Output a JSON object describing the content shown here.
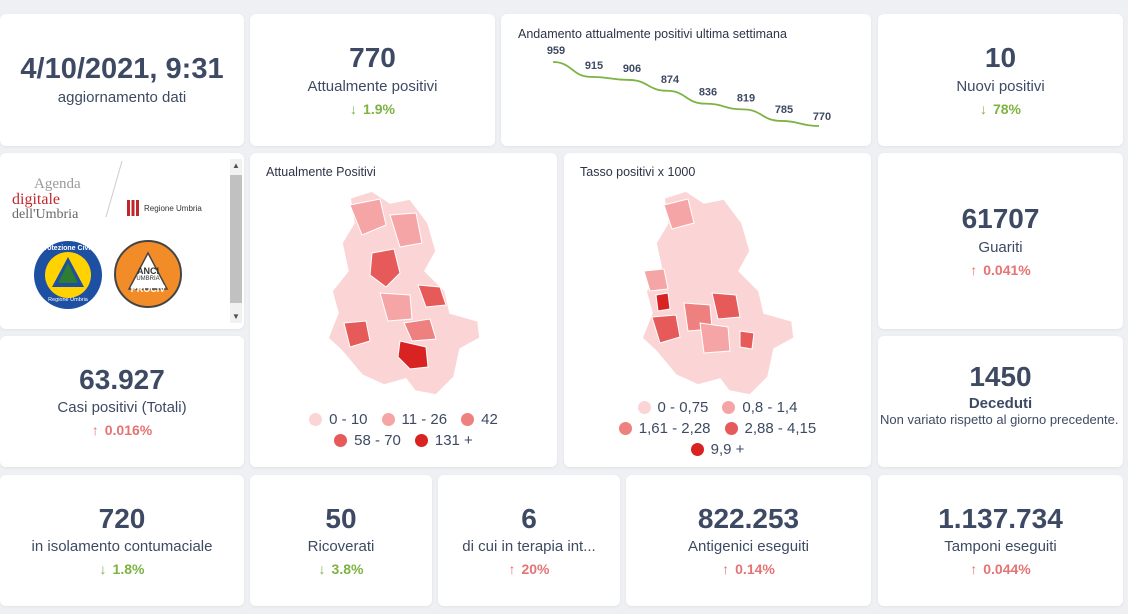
{
  "update": {
    "datetime": "4/10/2021, 9:31",
    "label": "aggiornamento dati"
  },
  "positivi": {
    "value": "770",
    "label": "Attualmente positivi",
    "trend": "1.9%",
    "direction": "down"
  },
  "weekly_chart": {
    "title": "Andamento attualmente positivi ultima settimana",
    "chart_data": {
      "type": "line",
      "title": "Andamento attualmente positivi ultima settimana",
      "values": [
        959,
        915,
        906,
        874,
        836,
        819,
        785,
        770
      ],
      "series": [
        {
          "values": [
            959,
            915,
            906,
            874,
            836,
            819,
            785,
            770
          ],
          "color": "#7cb342"
        }
      ]
    }
  },
  "nuovi": {
    "value": "10",
    "label": "Nuovi positivi",
    "trend": "78%",
    "direction": "down"
  },
  "logos": {
    "agenda_line1": "Agenda",
    "agenda_line2": "digitale",
    "agenda_line3": "dell'Umbria",
    "regione": "Regione Umbria",
    "protezione": "Protezione Civile",
    "protezione_sub": "Regione Umbria",
    "anci1": "ANCI",
    "anci2": "UMBRIA",
    "anci3": "PROCIV"
  },
  "map1": {
    "title": "Attualmente Positivi",
    "legend": [
      {
        "label": "0 - 10",
        "color": "#fbd5d5"
      },
      {
        "label": "11 - 26",
        "color": "#f5a5a5"
      },
      {
        "label": "42",
        "color": "#ee8080"
      },
      {
        "label": "58 - 70",
        "color": "#e65a5a"
      },
      {
        "label": "131 +",
        "color": "#d92323"
      }
    ]
  },
  "map2": {
    "title": "Tasso positivi x 1000",
    "legend": [
      {
        "label": "0 - 0,75",
        "color": "#fbd5d5"
      },
      {
        "label": "0,8 - 1,4",
        "color": "#f5a5a5"
      },
      {
        "label": "1,61 - 2,28",
        "color": "#ee8080"
      },
      {
        "label": "2,88 - 4,15",
        "color": "#e65a5a"
      },
      {
        "label": "9,9 +",
        "color": "#d92323"
      }
    ]
  },
  "guariti": {
    "value": "61707",
    "label": "Guariti",
    "trend": "0.041%",
    "direction": "up"
  },
  "casi": {
    "value": "63.927",
    "label": "Casi positivi (Totali)",
    "trend": "0.016%",
    "direction": "up"
  },
  "deceduti": {
    "value": "1450",
    "label": "Deceduti",
    "note": "Non variato rispetto al giorno precedente."
  },
  "isolamento": {
    "value": "720",
    "label": "in isolamento contumaciale",
    "trend": "1.8%",
    "direction": "down"
  },
  "ricoverati": {
    "value": "50",
    "label": "Ricoverati",
    "trend": "3.8%",
    "direction": "down"
  },
  "terapia": {
    "value": "6",
    "label": "di cui in terapia int...",
    "trend": "20%",
    "direction": "up"
  },
  "antigenici": {
    "value": "822.253",
    "label": "Antigenici eseguiti",
    "trend": "0.14%",
    "direction": "up"
  },
  "tamponi": {
    "value": "1.137.734",
    "label": "Tamponi eseguiti",
    "trend": "0.044%",
    "direction": "up"
  },
  "colors": {
    "green": "#7cb342",
    "red": "#e57373",
    "text": "#3e4a63"
  }
}
